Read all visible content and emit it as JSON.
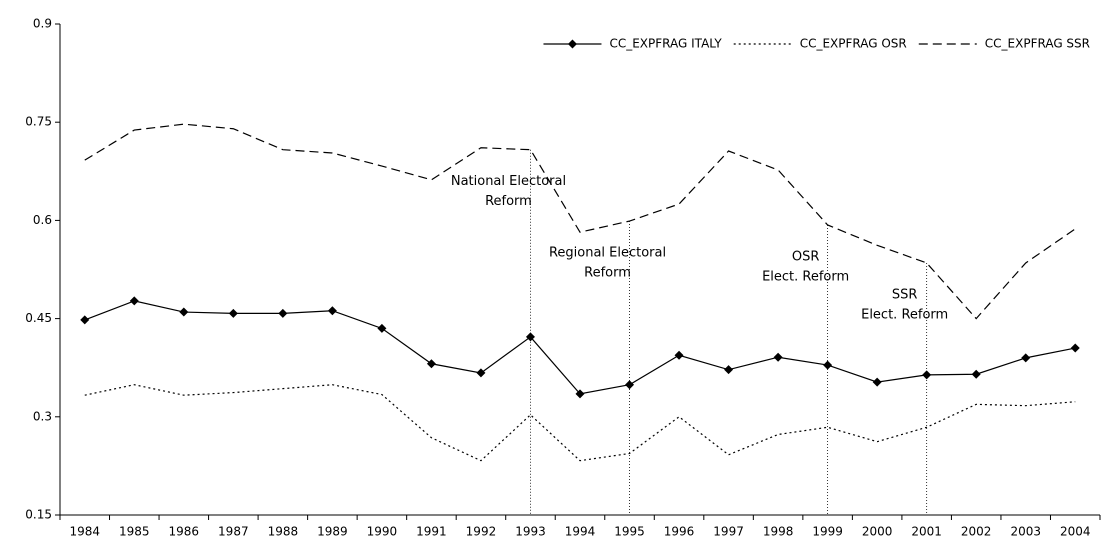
{
  "chart_data": {
    "type": "line",
    "categories": [
      "1984",
      "1985",
      "1986",
      "1987",
      "1988",
      "1989",
      "1990",
      "1991",
      "1992",
      "1993",
      "1994",
      "1995",
      "1996",
      "1997",
      "1998",
      "1999",
      "2000",
      "2001",
      "2002",
      "2003",
      "2004"
    ],
    "series": [
      {
        "name": "CC_EXPFRAG ITALY",
        "color": "#000000",
        "dash": "solid",
        "marker": "diamond",
        "values": [
          0.448,
          0.477,
          0.46,
          0.458,
          0.458,
          0.462,
          0.435,
          0.381,
          0.367,
          0.422,
          0.335,
          0.349,
          0.394,
          0.372,
          0.391,
          0.379,
          0.353,
          0.364,
          0.365,
          0.39,
          0.405
        ]
      },
      {
        "name": "CC_EXPFRAG OSR",
        "color": "#000000",
        "dash": "dotted",
        "marker": null,
        "values": [
          0.333,
          0.349,
          0.333,
          0.337,
          0.343,
          0.349,
          0.334,
          0.268,
          0.233,
          0.303,
          0.233,
          0.244,
          0.3,
          0.242,
          0.273,
          0.284,
          0.262,
          0.284,
          0.319,
          0.317,
          0.323
        ]
      },
      {
        "name": "CC_EXPFRAG SSR",
        "color": "#000000",
        "dash": "dashed",
        "marker": null,
        "values": [
          0.692,
          0.738,
          0.747,
          0.74,
          0.708,
          0.703,
          0.683,
          0.662,
          0.711,
          0.708,
          0.582,
          0.599,
          0.625,
          0.706,
          0.677,
          0.593,
          0.562,
          0.535,
          0.45,
          0.535,
          0.587
        ]
      }
    ],
    "ylim": [
      0.15,
      0.9
    ],
    "yticks": [
      0.15,
      0.3,
      0.45,
      0.6,
      0.75,
      0.9
    ],
    "grid": false,
    "legend": "top-right",
    "annotations": [
      {
        "x": "1993",
        "lines": [
          "National Electoral",
          "Reform"
        ]
      },
      {
        "x": "1995",
        "lines": [
          "Regional Electoral",
          "Reform"
        ]
      },
      {
        "x": "1999",
        "lines": [
          "OSR",
          "Elect. Reform"
        ]
      },
      {
        "x": "2001",
        "lines": [
          "SSR",
          "Elect. Reform"
        ]
      }
    ]
  }
}
